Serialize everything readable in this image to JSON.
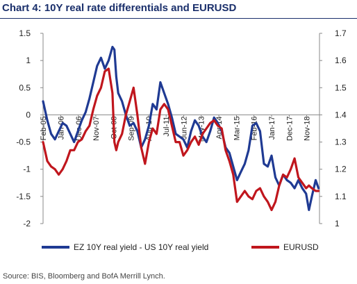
{
  "title": "Chart 4:  10Y real rate differentials and EURUSD",
  "source": "Source:  BIS, Bloomberg and BofA Merrill Lynch.",
  "colors": {
    "title": "#1a2f6b",
    "spread": "#1f3a93",
    "eurusd": "#c0161d",
    "axis": "#888888"
  },
  "chart_data": {
    "type": "line",
    "legend_position": "bottom",
    "grid": false,
    "left_axis": {
      "min": -2,
      "max": 1.5,
      "ticks": [
        "1.5",
        "1",
        "0.5",
        "0",
        "-0.5",
        "-1",
        "-1.5",
        "-2"
      ]
    },
    "right_axis": {
      "min": 1.0,
      "max": 1.7,
      "ticks": [
        "1.7",
        "1.6",
        "1.5",
        "1.4",
        "1.3",
        "1.2",
        "1.1",
        "1"
      ]
    },
    "x_range": [
      2005.08,
      2019.5
    ],
    "x_ticks": [
      {
        "label": "Feb-05",
        "x": 2005.08
      },
      {
        "label": "Jan-06",
        "x": 2006.0
      },
      {
        "label": "Dec-06",
        "x": 2006.92
      },
      {
        "label": "Nov-07",
        "x": 2007.83
      },
      {
        "label": "Oct-08",
        "x": 2008.75
      },
      {
        "label": "Sep-09",
        "x": 2009.67
      },
      {
        "label": "Aug-10",
        "x": 2010.58
      },
      {
        "label": "Jul-11",
        "x": 2011.5
      },
      {
        "label": "Jun-12",
        "x": 2012.42
      },
      {
        "label": "May-13",
        "x": 2013.33
      },
      {
        "label": "Apr-14",
        "x": 2014.25
      },
      {
        "label": "Mar-15",
        "x": 2015.17
      },
      {
        "label": "Feb-16",
        "x": 2016.08
      },
      {
        "label": "Jan-17",
        "x": 2017.0
      },
      {
        "label": "Dec-17",
        "x": 2017.92
      },
      {
        "label": "Nov-18",
        "x": 2018.83
      }
    ],
    "series": [
      {
        "name": "EZ 10Y real yield - US 10Y real yield",
        "axis": "left",
        "x": [
          2005.08,
          2005.3,
          2005.5,
          2005.7,
          2005.9,
          2006.1,
          2006.3,
          2006.5,
          2006.7,
          2006.9,
          2007.1,
          2007.3,
          2007.5,
          2007.7,
          2007.9,
          2008.1,
          2008.3,
          2008.5,
          2008.7,
          2008.8,
          2008.9,
          2009.0,
          2009.2,
          2009.4,
          2009.6,
          2009.8,
          2010.0,
          2010.2,
          2010.4,
          2010.6,
          2010.8,
          2011.0,
          2011.2,
          2011.4,
          2011.6,
          2011.8,
          2012.0,
          2012.2,
          2012.4,
          2012.6,
          2012.8,
          2013.0,
          2013.2,
          2013.4,
          2013.6,
          2013.8,
          2014.0,
          2014.2,
          2014.4,
          2014.6,
          2014.8,
          2015.0,
          2015.2,
          2015.4,
          2015.6,
          2015.8,
          2016.0,
          2016.2,
          2016.4,
          2016.6,
          2016.8,
          2017.0,
          2017.2,
          2017.4,
          2017.6,
          2017.8,
          2018.0,
          2018.2,
          2018.4,
          2018.6,
          2018.8,
          2018.95,
          2019.1,
          2019.3,
          2019.45
        ],
        "y": [
          0.25,
          -0.1,
          -0.35,
          -0.45,
          -0.3,
          -0.15,
          -0.2,
          -0.35,
          -0.5,
          -0.3,
          -0.1,
          0.05,
          0.3,
          0.6,
          0.9,
          1.05,
          0.85,
          1.0,
          1.25,
          1.2,
          0.7,
          0.4,
          0.25,
          0.0,
          -0.2,
          -0.15,
          -0.3,
          -0.6,
          -0.45,
          -0.2,
          0.2,
          0.1,
          0.6,
          0.4,
          0.2,
          -0.05,
          -0.35,
          -0.4,
          -0.45,
          -0.6,
          -0.3,
          -0.1,
          -0.2,
          -0.4,
          -0.5,
          -0.3,
          -0.05,
          -0.15,
          -0.3,
          -0.6,
          -0.7,
          -0.95,
          -1.2,
          -1.05,
          -0.9,
          -0.65,
          -0.2,
          -0.15,
          -0.3,
          -0.9,
          -0.95,
          -0.75,
          -1.15,
          -1.3,
          -1.1,
          -1.2,
          -1.25,
          -1.35,
          -1.2,
          -1.35,
          -1.45,
          -1.75,
          -1.5,
          -1.2,
          -1.35
        ]
      },
      {
        "name": "EURUSD",
        "axis": "right",
        "x": [
          2005.08,
          2005.3,
          2005.5,
          2005.7,
          2005.9,
          2006.1,
          2006.3,
          2006.5,
          2006.7,
          2006.9,
          2007.1,
          2007.3,
          2007.5,
          2007.7,
          2007.9,
          2008.1,
          2008.3,
          2008.5,
          2008.7,
          2008.8,
          2008.9,
          2009.0,
          2009.2,
          2009.4,
          2009.6,
          2009.8,
          2010.0,
          2010.2,
          2010.4,
          2010.6,
          2010.8,
          2011.0,
          2011.2,
          2011.4,
          2011.6,
          2011.8,
          2012.0,
          2012.2,
          2012.4,
          2012.6,
          2012.8,
          2013.0,
          2013.2,
          2013.4,
          2013.6,
          2013.8,
          2014.0,
          2014.2,
          2014.4,
          2014.6,
          2014.8,
          2015.0,
          2015.2,
          2015.4,
          2015.6,
          2015.8,
          2016.0,
          2016.2,
          2016.4,
          2016.6,
          2016.8,
          2017.0,
          2017.2,
          2017.4,
          2017.6,
          2017.8,
          2018.0,
          2018.2,
          2018.4,
          2018.6,
          2018.8,
          2018.95,
          2019.1,
          2019.3,
          2019.45
        ],
        "y": [
          1.3,
          1.23,
          1.21,
          1.2,
          1.18,
          1.2,
          1.23,
          1.27,
          1.27,
          1.3,
          1.31,
          1.34,
          1.36,
          1.42,
          1.47,
          1.5,
          1.56,
          1.57,
          1.48,
          1.3,
          1.27,
          1.3,
          1.33,
          1.4,
          1.45,
          1.5,
          1.4,
          1.28,
          1.22,
          1.3,
          1.35,
          1.33,
          1.42,
          1.44,
          1.42,
          1.36,
          1.3,
          1.3,
          1.25,
          1.27,
          1.3,
          1.32,
          1.29,
          1.33,
          1.35,
          1.37,
          1.38,
          1.36,
          1.35,
          1.27,
          1.23,
          1.18,
          1.08,
          1.1,
          1.12,
          1.1,
          1.09,
          1.12,
          1.13,
          1.1,
          1.08,
          1.05,
          1.08,
          1.14,
          1.18,
          1.17,
          1.2,
          1.24,
          1.17,
          1.15,
          1.13,
          1.14,
          1.13,
          1.12,
          1.12
        ]
      }
    ]
  }
}
